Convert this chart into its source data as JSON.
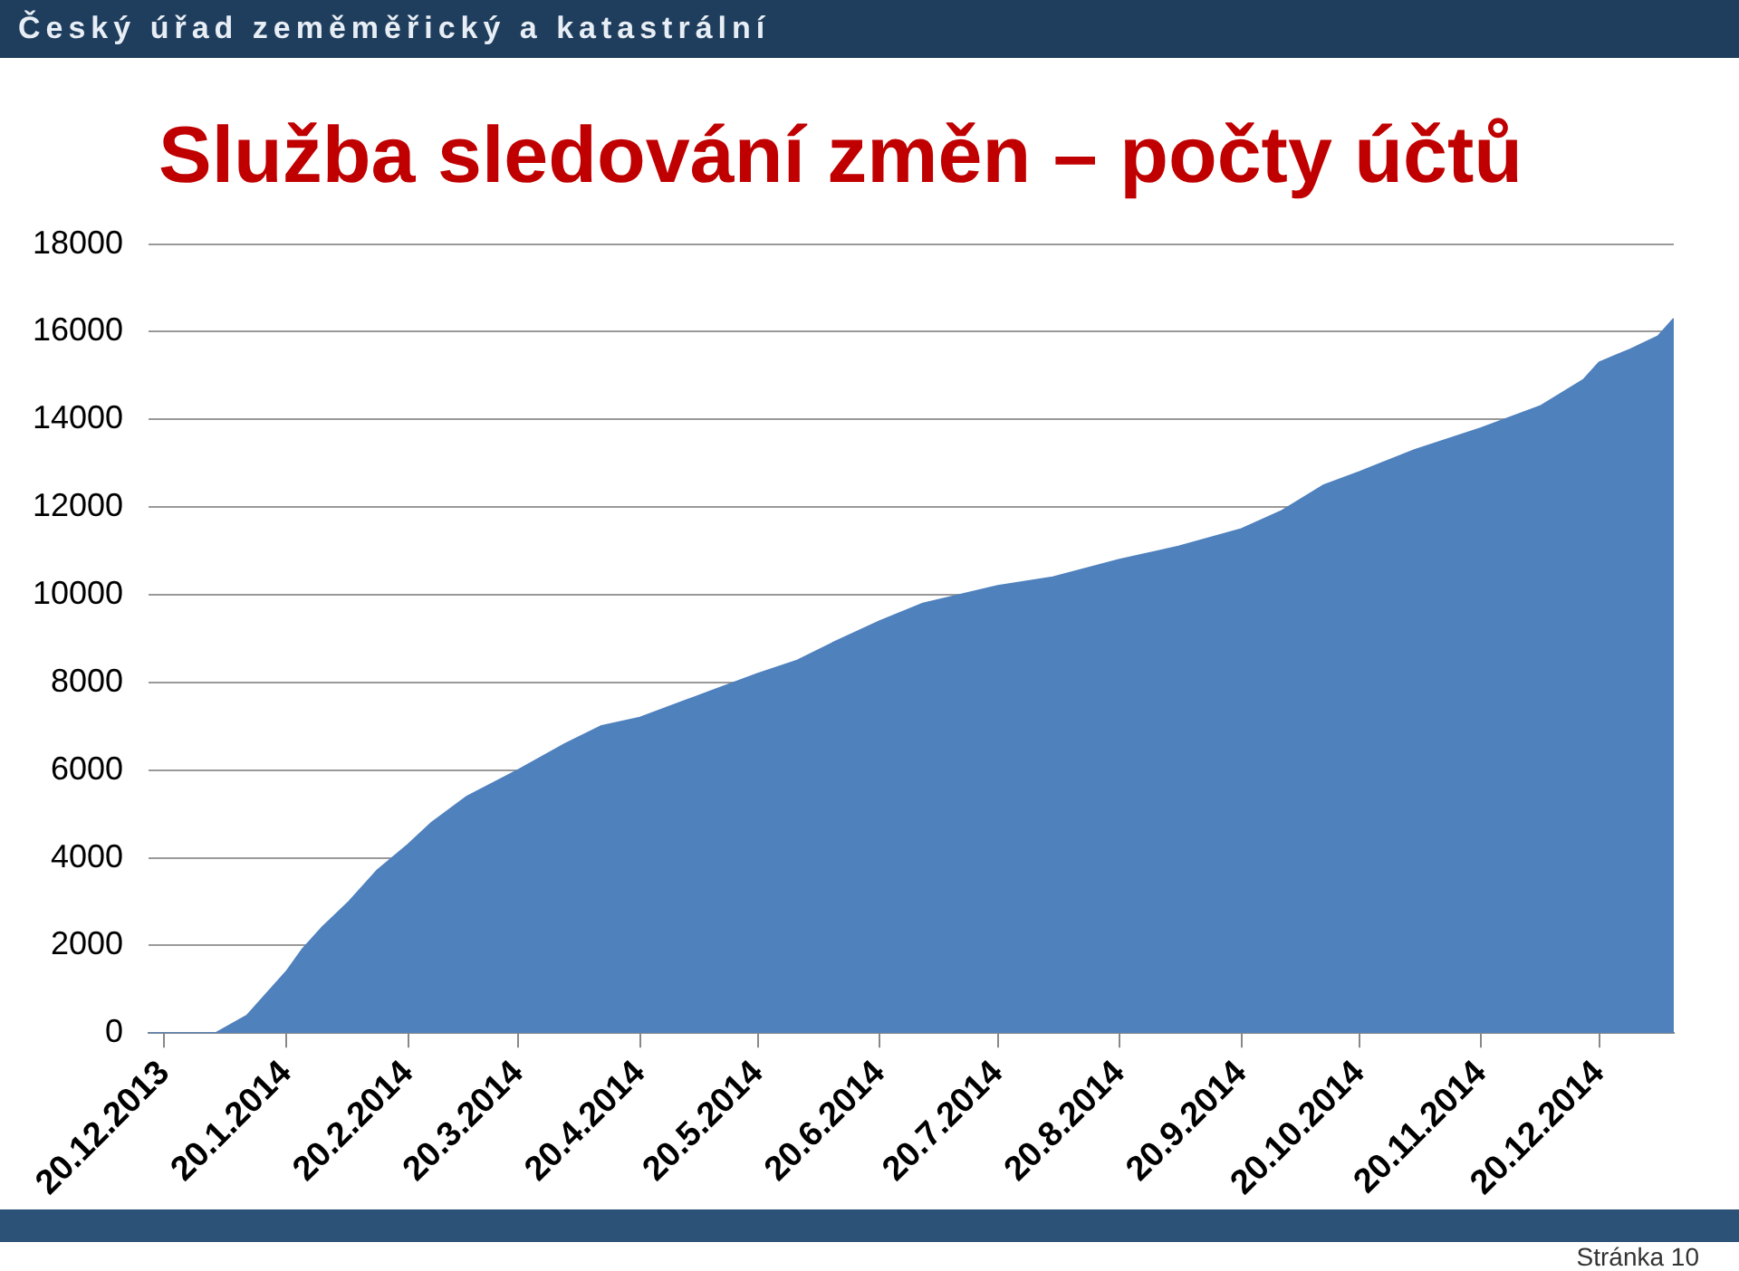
{
  "chart_data": {
    "type": "area",
    "title": "Služba sledování změn – počty účtů",
    "x": [
      "2013-12-16",
      "2014-01-02",
      "2014-01-06",
      "2014-01-10",
      "2014-01-15",
      "2014-01-20",
      "2014-01-24",
      "2014-01-29",
      "2014-02-05",
      "2014-02-12",
      "2014-02-20",
      "2014-02-26",
      "2014-03-07",
      "2014-03-20",
      "2014-04-01",
      "2014-04-10",
      "2014-04-20",
      "2014-05-02",
      "2014-05-11",
      "2014-05-20",
      "2014-05-30",
      "2014-06-08",
      "2014-06-20",
      "2014-07-01",
      "2014-07-20",
      "2014-08-03",
      "2014-08-20",
      "2014-09-04",
      "2014-09-20",
      "2014-09-30",
      "2014-10-11",
      "2014-10-20",
      "2014-11-03",
      "2014-11-20",
      "2014-12-05",
      "2014-12-16",
      "2014-12-20",
      "2014-12-28",
      "2015-01-04",
      "2015-01-08"
    ],
    "series": [
      {
        "color": "#4f81bd",
        "values": [
          0,
          0,
          200,
          400,
          900,
          1400,
          1900,
          2400,
          3000,
          3700,
          4300,
          4800,
          5400,
          6000,
          6600,
          7000,
          7200,
          7600,
          7900,
          8200,
          8500,
          8900,
          9400,
          9800,
          10200,
          10400,
          10800,
          11100,
          11500,
          11900,
          12500,
          12800,
          13300,
          13800,
          14300,
          14900,
          15300,
          15600,
          15900,
          16300
        ]
      }
    ],
    "xlim": [
      "2013-12-16",
      "2015-01-08"
    ],
    "xticks": [
      {
        "value": "2013-12-20",
        "label": "20.12.2013"
      },
      {
        "value": "2014-01-20",
        "label": "20.1.2014"
      },
      {
        "value": "2014-02-20",
        "label": "20.2.2014"
      },
      {
        "value": "2014-03-20",
        "label": "20.3.2014"
      },
      {
        "value": "2014-04-20",
        "label": "20.4.2014"
      },
      {
        "value": "2014-05-20",
        "label": "20.5.2014"
      },
      {
        "value": "2014-06-20",
        "label": "20.6.2014"
      },
      {
        "value": "2014-07-20",
        "label": "20.7.2014"
      },
      {
        "value": "2014-08-20",
        "label": "20.8.2014"
      },
      {
        "value": "2014-09-20",
        "label": "20.9.2014"
      },
      {
        "value": "2014-10-20",
        "label": "20.10.2014"
      },
      {
        "value": "2014-11-20",
        "label": "20.11.2014"
      },
      {
        "value": "2014-12-20",
        "label": "20.12.2014"
      }
    ],
    "ylim": [
      0,
      18000
    ],
    "yticks": [
      0,
      2000,
      4000,
      6000,
      8000,
      10000,
      12000,
      14000,
      16000,
      18000
    ],
    "grid": "y",
    "annotations": [
      "Český úřad zeměměřický a katastrální",
      "Stránka 10"
    ]
  }
}
